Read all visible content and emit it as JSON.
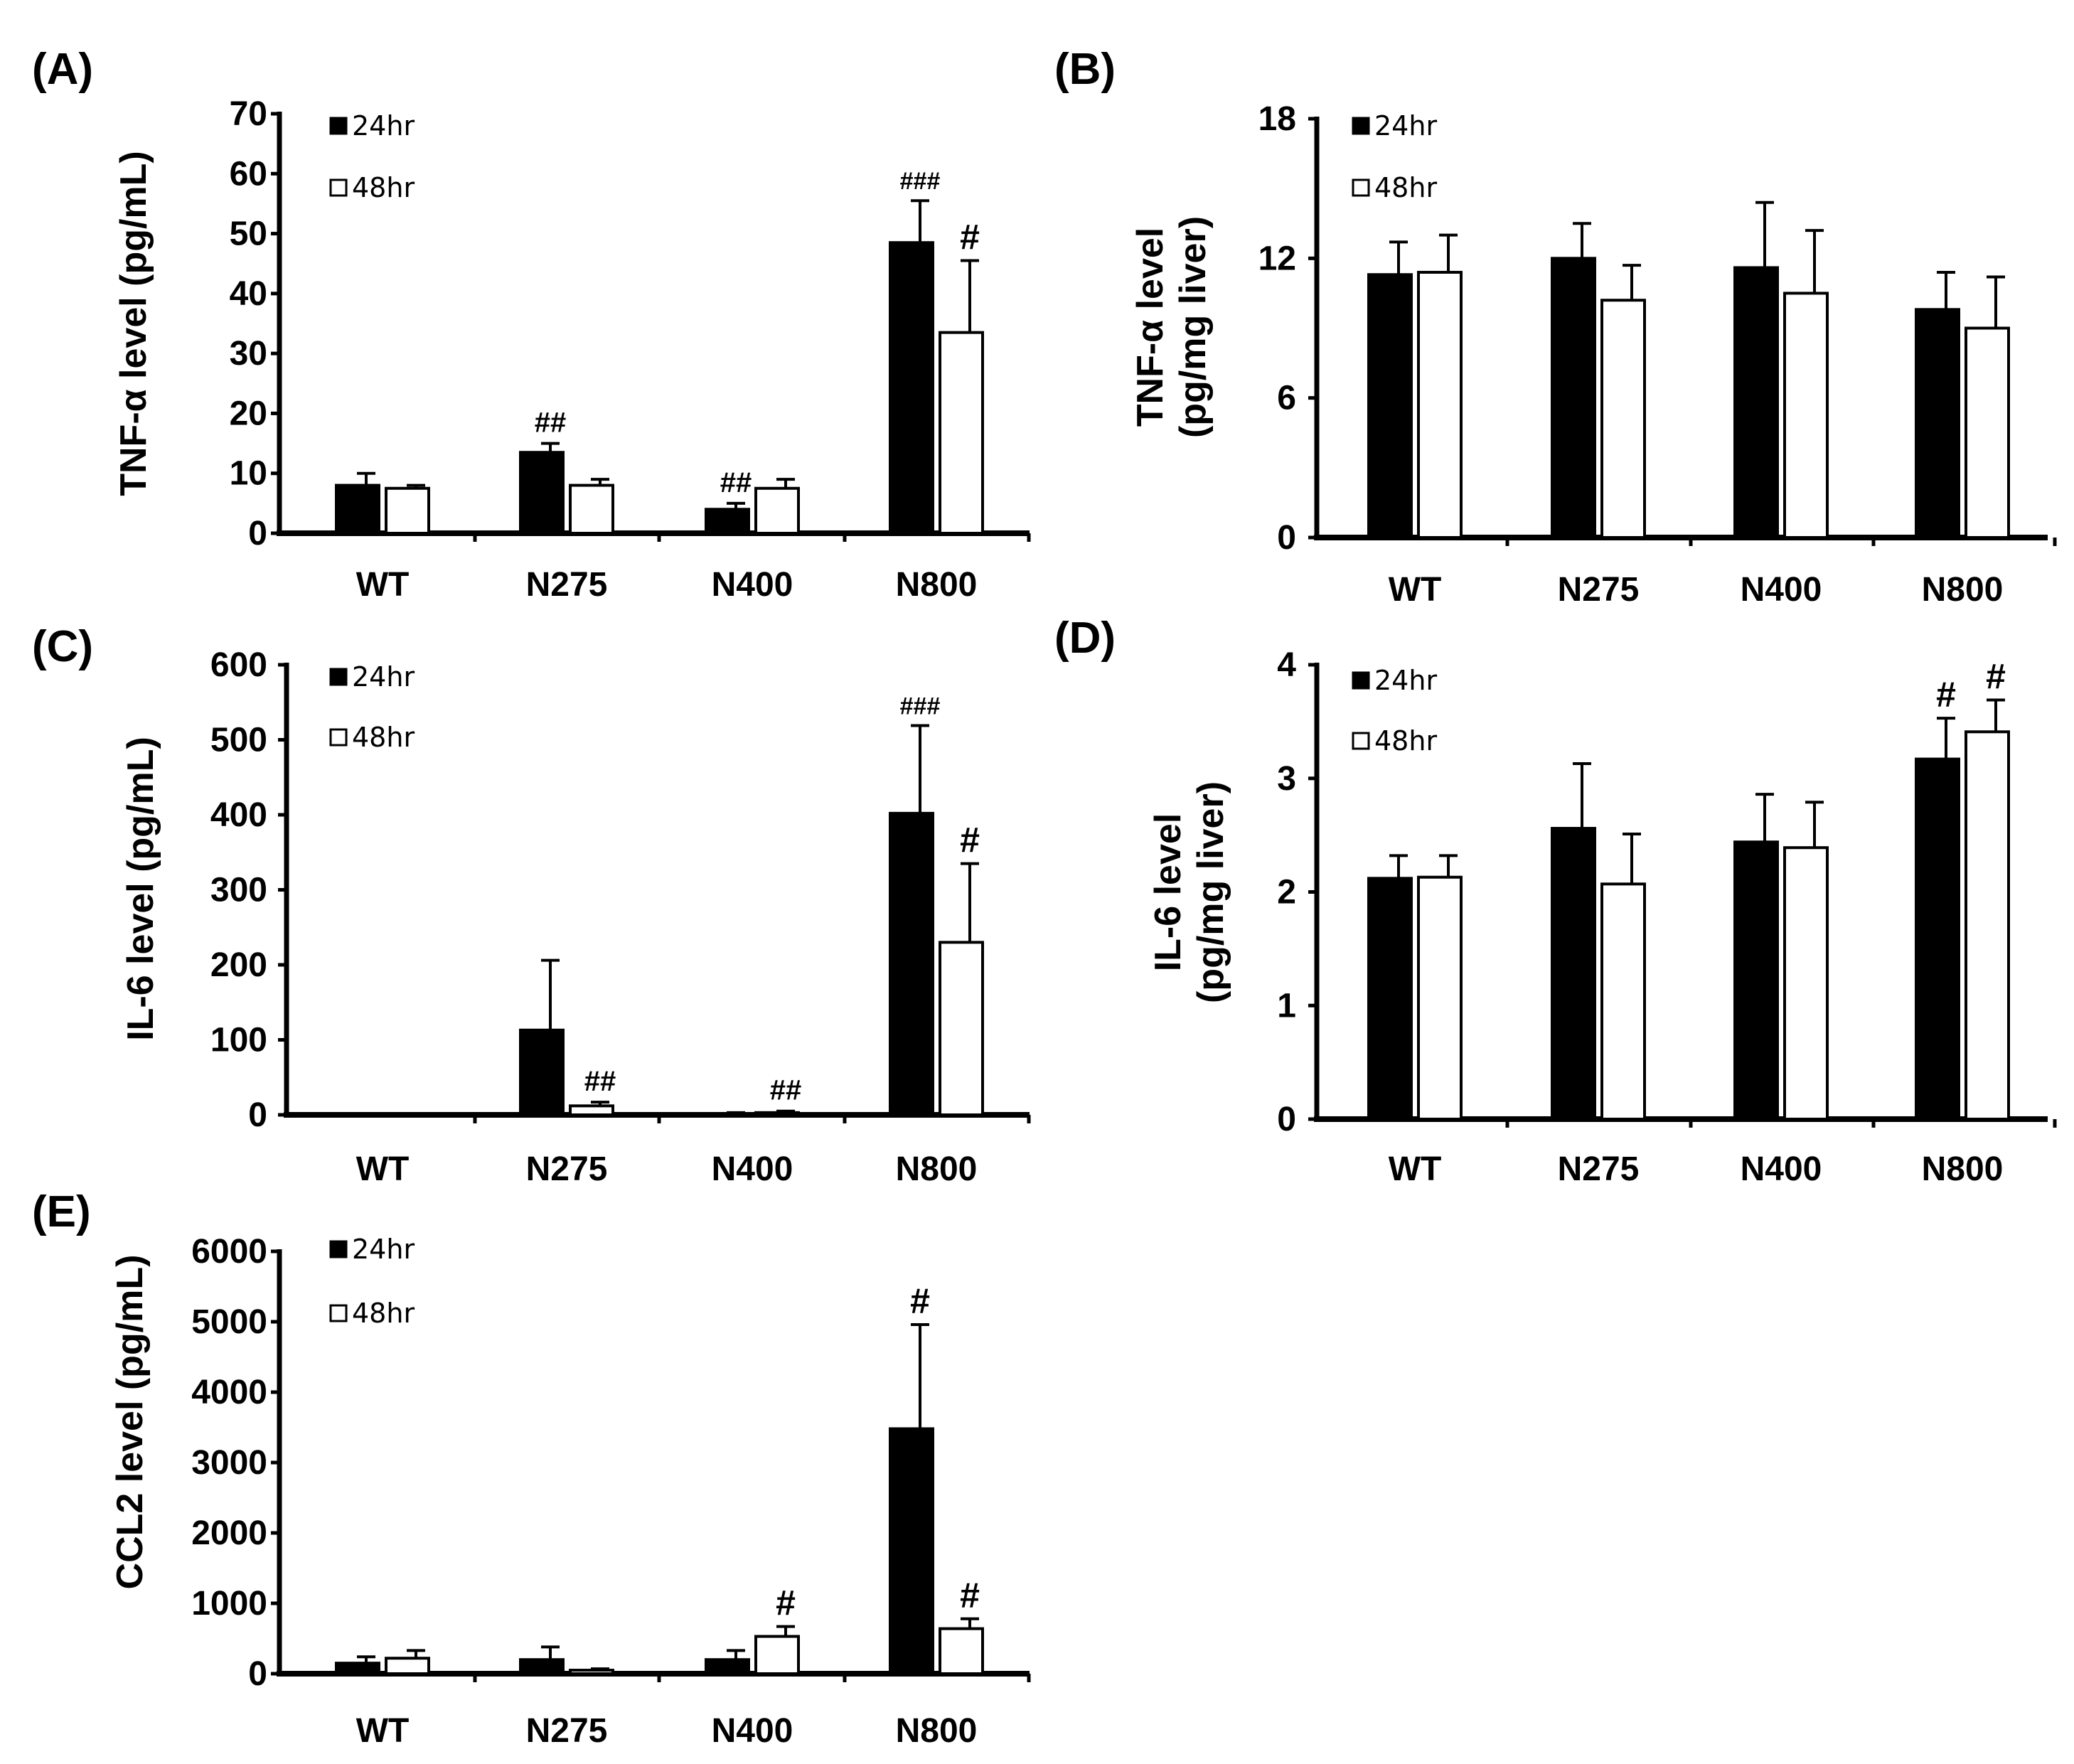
{
  "chart_data": [
    {
      "panel": "(A)",
      "type": "bar",
      "ylabel": [
        "TNF-α level (pg/mL)"
      ],
      "categories": [
        "WT",
        "N275",
        "N400",
        "N800"
      ],
      "ylim": [
        0,
        70
      ],
      "yticks": [
        "0",
        "10",
        "20",
        "30",
        "40",
        "50",
        "60",
        "70"
      ],
      "series": [
        {
          "name": "24hr",
          "values": [
            8,
            13.5,
            4,
            48.5
          ],
          "errors": [
            2,
            1.5,
            1,
            7
          ],
          "annotations": [
            "",
            "##",
            "##",
            "###"
          ]
        },
        {
          "name": "48hr",
          "values": [
            7.5,
            8,
            7.5,
            33.5
          ],
          "errors": [
            0.5,
            1,
            1.5,
            12
          ],
          "annotations": [
            "",
            "",
            "",
            "#"
          ]
        }
      ]
    },
    {
      "panel": "(B)",
      "type": "bar",
      "ylabel": [
        "TNF-α level",
        "(pg/mg liver)"
      ],
      "categories": [
        "WT",
        "N275",
        "N400",
        "N800"
      ],
      "ylim": [
        0,
        18
      ],
      "yticks": [
        "0",
        "6",
        "12",
        "18"
      ],
      "series": [
        {
          "name": "24hr",
          "values": [
            11.3,
            12,
            11.6,
            9.8
          ],
          "errors": [
            1.4,
            1.5,
            2.8,
            1.6
          ],
          "annotations": [
            "",
            "",
            "",
            ""
          ]
        },
        {
          "name": "48hr",
          "values": [
            11.4,
            10.2,
            10.5,
            9
          ],
          "errors": [
            1.6,
            1.5,
            2.7,
            2.2
          ],
          "annotations": [
            "",
            "",
            "",
            ""
          ]
        }
      ]
    },
    {
      "panel": "(C)",
      "type": "bar",
      "ylabel": [
        "IL-6 level (pg/mL)"
      ],
      "categories": [
        "WT",
        "N275",
        "N400",
        "N800"
      ],
      "ylim": [
        0,
        600
      ],
      "yticks": [
        "0",
        "100",
        "200",
        "300",
        "400",
        "500",
        "600"
      ],
      "series": [
        {
          "name": "24hr",
          "values": [
            0,
            113,
            1,
            402
          ],
          "errors": [
            0,
            93,
            2,
            117
          ],
          "annotations": [
            "",
            "",
            "",
            "###"
          ]
        },
        {
          "name": "48hr",
          "values": [
            0,
            12,
            3,
            230
          ],
          "errors": [
            0,
            5,
            2,
            105
          ],
          "annotations": [
            "",
            "##",
            "##",
            "#"
          ]
        }
      ]
    },
    {
      "panel": "(D)",
      "type": "bar",
      "ylabel": [
        "IL-6 level",
        "(pg/mg liver)"
      ],
      "categories": [
        "WT",
        "N275",
        "N400",
        "N800"
      ],
      "ylim": [
        0,
        4
      ],
      "yticks": [
        "0",
        "1",
        "2",
        "3",
        "4"
      ],
      "series": [
        {
          "name": "24hr",
          "values": [
            2.12,
            2.56,
            2.44,
            3.17
          ],
          "errors": [
            0.2,
            0.57,
            0.42,
            0.36
          ],
          "annotations": [
            "",
            "",
            "",
            "#"
          ]
        },
        {
          "name": "48hr",
          "values": [
            2.13,
            2.07,
            2.39,
            3.41
          ],
          "errors": [
            0.19,
            0.44,
            0.4,
            0.28
          ],
          "annotations": [
            "",
            "",
            "",
            "#"
          ]
        }
      ]
    },
    {
      "panel": "(E)",
      "type": "bar",
      "ylabel": [
        "CCL2 level (pg/mL)"
      ],
      "categories": [
        "WT",
        "N275",
        "N400",
        "N800"
      ],
      "ylim": [
        0,
        6000
      ],
      "yticks": [
        "0",
        "1000",
        "2000",
        "3000",
        "4000",
        "5000",
        "6000"
      ],
      "series": [
        {
          "name": "24hr",
          "values": [
            150,
            200,
            200,
            3480
          ],
          "errors": [
            90,
            180,
            130,
            1480
          ],
          "annotations": [
            "",
            "",
            "",
            "#"
          ]
        },
        {
          "name": "48hr",
          "values": [
            220,
            50,
            530,
            640
          ],
          "errors": [
            110,
            20,
            140,
            140
          ],
          "annotations": [
            "",
            "",
            "#",
            "#"
          ]
        }
      ]
    }
  ]
}
